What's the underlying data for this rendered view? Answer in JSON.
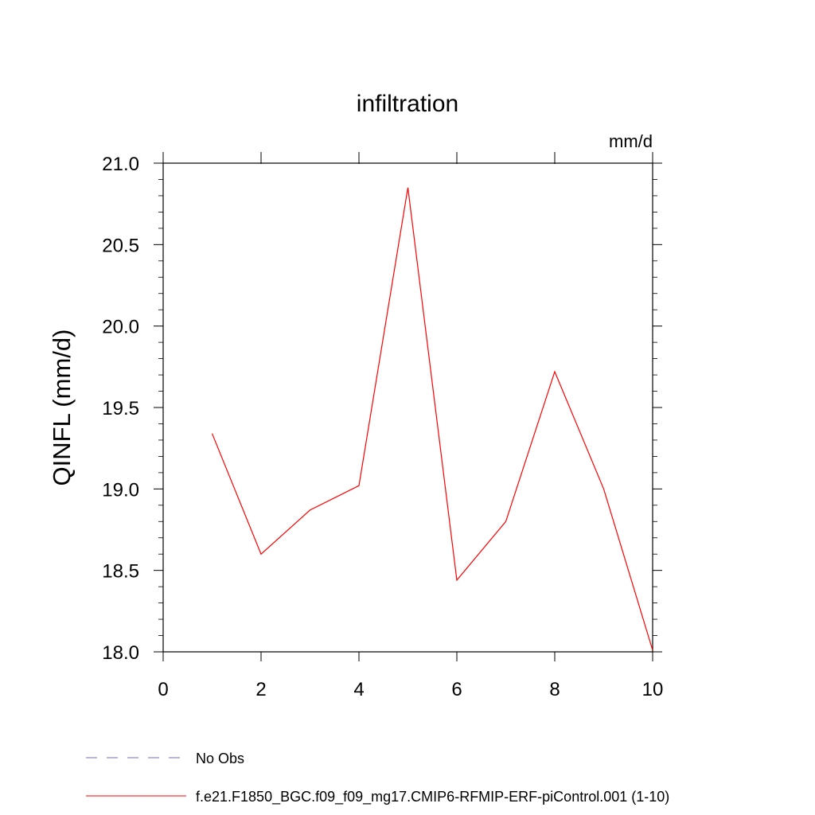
{
  "chart_data": {
    "type": "line",
    "title": "infiltration",
    "units_label": "mm/d",
    "ylabel": "QINFL  (mm/d)",
    "xlabel": "",
    "xlim": [
      0,
      10
    ],
    "ylim": [
      18.0,
      21.0
    ],
    "x_ticks": [
      0,
      2,
      4,
      6,
      8,
      10
    ],
    "x_tick_labels": [
      "0",
      "2",
      "4",
      "6",
      "8",
      "10"
    ],
    "y_ticks": [
      18.0,
      18.5,
      19.0,
      19.5,
      20.0,
      20.5,
      21.0
    ],
    "y_tick_labels": [
      "18.0",
      "18.5",
      "19.0",
      "19.5",
      "20.0",
      "20.5",
      "21.0"
    ],
    "grid": false,
    "legend_placement": "bottom",
    "series": [
      {
        "name": "f.e21.F1850_BGC.f09_f09_mg17.CMIP6-RFMIP-ERF-piControl.001 (1-10)",
        "color": "#ff0000",
        "dash": "solid",
        "x": [
          1,
          2,
          3,
          4,
          5,
          6,
          7,
          8,
          9,
          10
        ],
        "y": [
          19.34,
          18.6,
          18.87,
          19.02,
          20.85,
          18.44,
          18.8,
          19.72,
          19.0,
          18.01
        ]
      }
    ],
    "legend": [
      {
        "label": "No Obs",
        "color": "#7b68c8",
        "dash": "dashed"
      },
      {
        "label": "f.e21.F1850_BGC.f09_f09_mg17.CMIP6-RFMIP-ERF-piControl.001 (1-10)",
        "color": "#ff0000",
        "dash": "solid"
      }
    ]
  }
}
